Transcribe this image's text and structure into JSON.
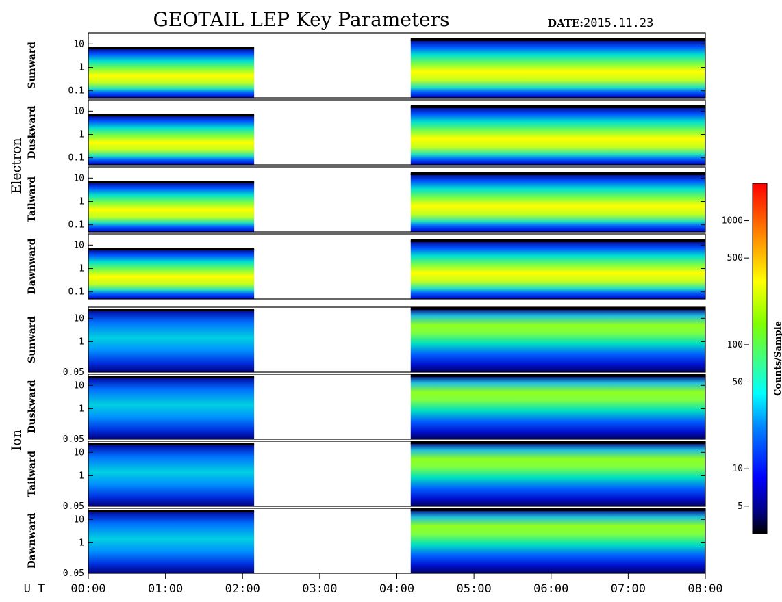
{
  "header": {
    "title": "GEOTAIL LEP Key Parameters",
    "date_label": "DATE:",
    "date_value": "2015.11.23"
  },
  "chart_data": {
    "type": "heatmap",
    "title": "GEOTAIL LEP Key Parameters",
    "date": "2015.11.23",
    "x_axis": {
      "label": "U T",
      "ticks": [
        "00:00",
        "01:00",
        "02:00",
        "03:00",
        "04:00",
        "05:00",
        "06:00",
        "07:00",
        "08:00"
      ],
      "range_hours": [
        0,
        8
      ]
    },
    "data_gaps_hours": [
      [
        2.15,
        4.18
      ]
    ],
    "groups": [
      {
        "name": "Electron",
        "panels": [
          {
            "direction": "Sunward",
            "y_ticks": [
              "10",
              "1",
              "0.1"
            ],
            "y_range": [
              0.05,
              30
            ]
          },
          {
            "direction": "Duskward",
            "y_ticks": [
              "10",
              "1",
              "0.1"
            ],
            "y_range": [
              0.05,
              30
            ]
          },
          {
            "direction": "Tailward",
            "y_ticks": [
              "10",
              "1",
              "0.1"
            ],
            "y_range": [
              0.05,
              30
            ]
          },
          {
            "direction": "Dawnward",
            "y_ticks": [
              "10",
              "1",
              "0.1"
            ],
            "y_range": [
              0.05,
              30
            ]
          }
        ]
      },
      {
        "name": "Ion",
        "panels": [
          {
            "direction": "Sunward",
            "y_ticks": [
              "10",
              "1",
              "0.05"
            ],
            "y_range": [
              0.05,
              30
            ]
          },
          {
            "direction": "Duskward",
            "y_ticks": [
              "10",
              "1",
              "0.05"
            ],
            "y_range": [
              0.05,
              30
            ]
          },
          {
            "direction": "Tailward",
            "y_ticks": [
              "10",
              "1",
              "0.05"
            ],
            "y_range": [
              0.05,
              30
            ]
          },
          {
            "direction": "Dawnward",
            "y_ticks": [
              "10",
              "1",
              "0.05"
            ],
            "y_range": [
              0.05,
              30
            ]
          }
        ]
      }
    ],
    "colorbar": {
      "label": "Counts/Sample",
      "scale": "log",
      "range": [
        3,
        2000
      ],
      "ticks": [
        {
          "value": 5,
          "label": "5"
        },
        {
          "value": 10,
          "label": "10"
        },
        {
          "value": 50,
          "label": "50"
        },
        {
          "value": 100,
          "label": "100"
        },
        {
          "value": 500,
          "label": "500"
        },
        {
          "value": 1000,
          "label": "1000"
        }
      ],
      "colors": [
        "#000000",
        "#00007f",
        "#0000ff",
        "#0080ff",
        "#00ffff",
        "#40ff80",
        "#80ff00",
        "#ffff00",
        "#ff8000",
        "#ff0000"
      ]
    }
  }
}
